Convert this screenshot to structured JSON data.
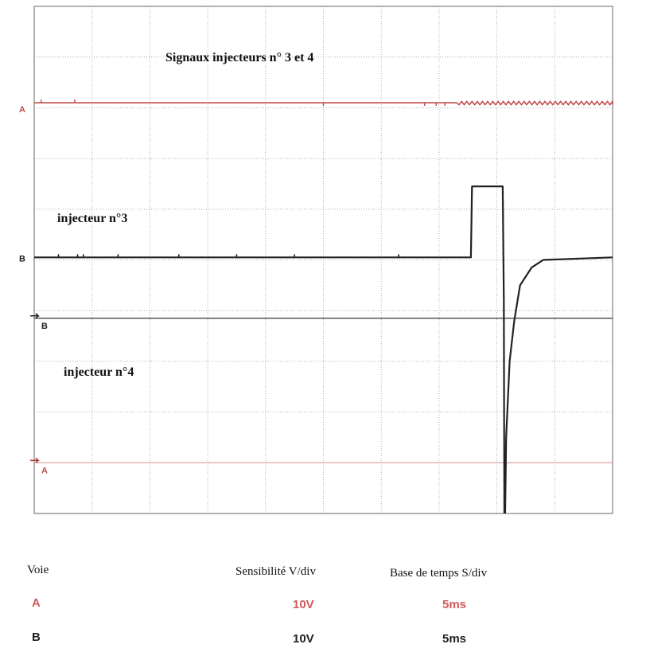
{
  "chart_data": {
    "type": "line",
    "title": "Signaux injecteurs n° 3 et 4",
    "grid": true,
    "x_divisions": 10,
    "y_divisions": 10,
    "series": [
      {
        "name": "injecteur n°3",
        "channel": "B",
        "color": "#222222",
        "points": [
          [
            0,
            5.05
          ],
          [
            7.55,
            5.05
          ],
          [
            7.57,
            6.45
          ],
          [
            8.1,
            6.45
          ],
          [
            8.12,
            4.2
          ],
          [
            8.13,
            -1.0
          ],
          [
            8.16,
            1.5
          ],
          [
            8.22,
            3.0
          ],
          [
            8.3,
            3.8
          ],
          [
            8.4,
            4.5
          ],
          [
            8.6,
            4.85
          ],
          [
            8.8,
            5.0
          ],
          [
            10,
            5.05
          ]
        ]
      },
      {
        "name": "injecteur n°4",
        "channel": "A",
        "color": "#c0504d",
        "points": [
          [
            0,
            8.1
          ],
          [
            10,
            8.1
          ]
        ]
      }
    ]
  },
  "markers": {
    "b_label": "B",
    "b_ref": "B",
    "a_label": "A",
    "a_ref": "A"
  },
  "settings": {
    "voie_header": "Voie",
    "sens_header": "Sensibilité V/div",
    "base_header": "Base de temps S/div",
    "rows": [
      {
        "voie": "A",
        "sens": "10V",
        "base": "5ms",
        "color": "#d05a5a"
      },
      {
        "voie": "B",
        "sens": "10V",
        "base": "5ms",
        "color": "#222222"
      }
    ]
  }
}
